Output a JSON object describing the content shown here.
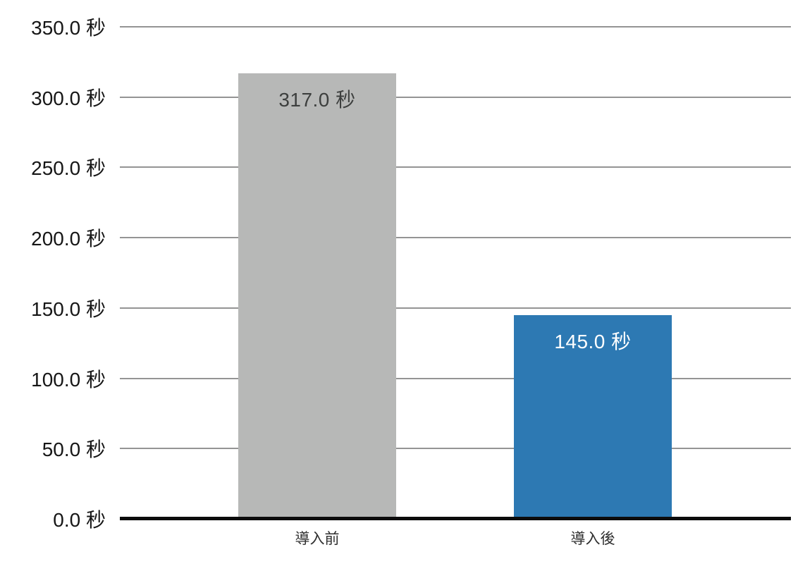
{
  "chart_data": {
    "type": "bar",
    "categories": [
      "導入前",
      "導入後"
    ],
    "values": [
      317.0,
      145.0
    ],
    "value_labels": [
      "317.0 秒",
      "145.0 秒"
    ],
    "unit": "秒",
    "title": "",
    "xlabel": "",
    "ylabel": "",
    "ylim": [
      0,
      350
    ],
    "ytick_step": 50,
    "ytick_labels_top_to_bottom": [
      "350.0 秒",
      "300.0 秒",
      "250.0 秒",
      "200.0 秒",
      "150.0 秒",
      "100.0 秒",
      "50.0 秒",
      "0.0 秒"
    ],
    "grid": true,
    "legend_position": "none",
    "bar_colors": [
      "#b7b8b7",
      "#2d79b3"
    ],
    "bar_label_colors": [
      "#3d3f3e",
      "#ffffff"
    ]
  },
  "colors": {
    "background": "#ffffff",
    "gridline": "#949494",
    "baseline": "#0c0c0c",
    "axis_text": "#161616"
  }
}
